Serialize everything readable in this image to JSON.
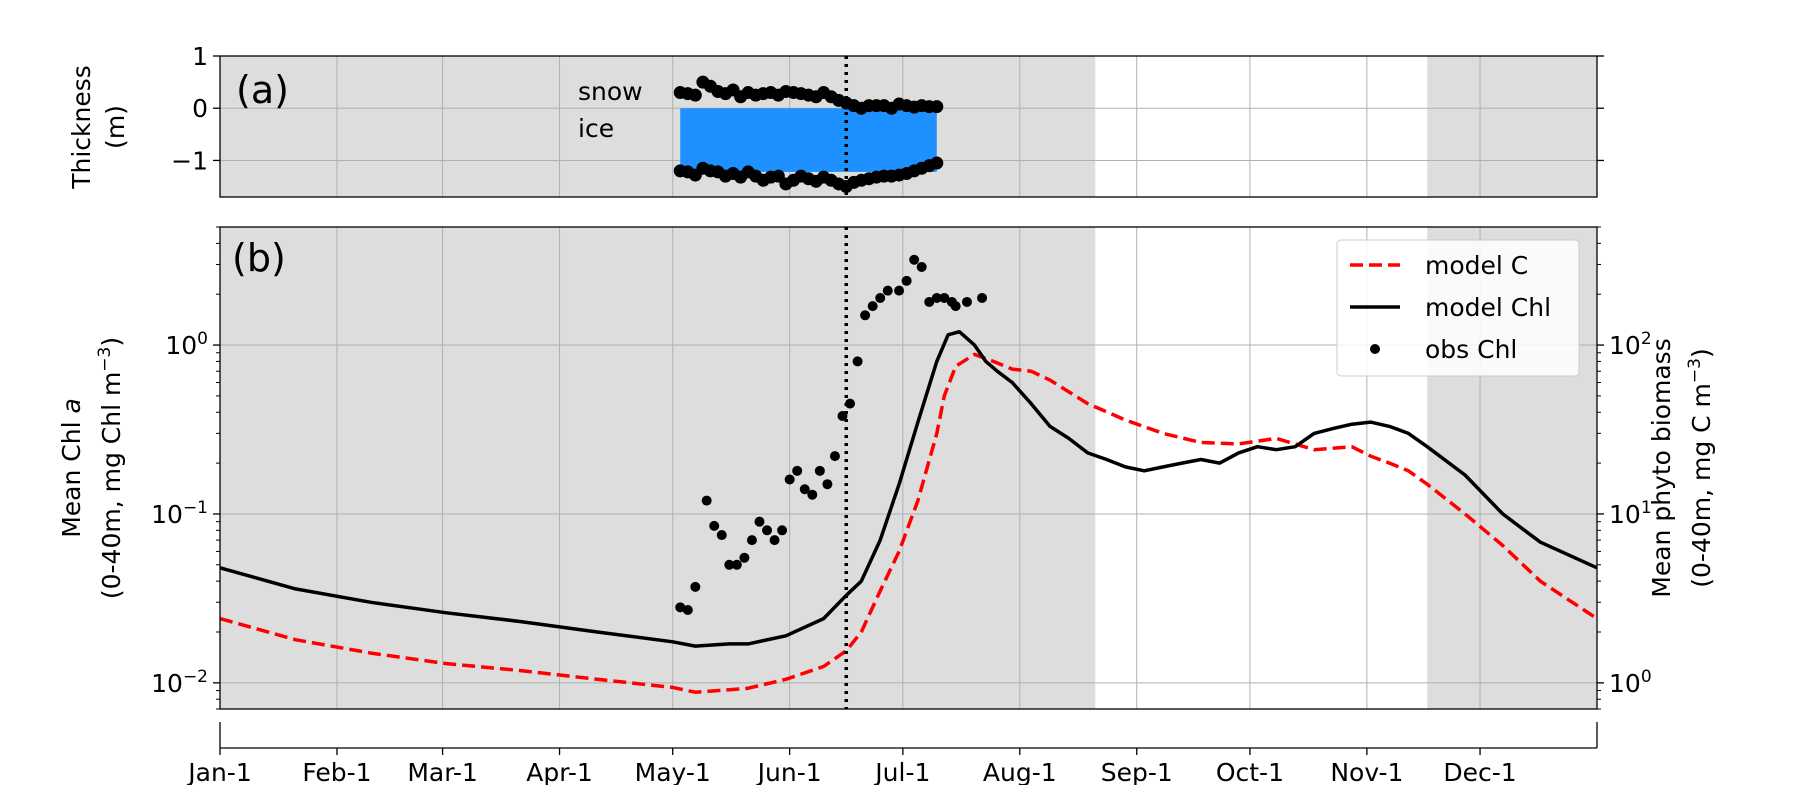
{
  "colors": {
    "shade": "#dddddd",
    "ice": "#1e90ff",
    "model_c": "#ff0000",
    "model_chl": "#000000",
    "obs": "#000000",
    "grid": "#b0b0b0"
  },
  "chart_data": [
    {
      "panel": "(a)",
      "type": "line",
      "ylabel": "Thickness",
      "ylabel_units": "(m)",
      "ylim": [
        -1.7,
        1
      ],
      "yticks": [
        1,
        0,
        -1
      ],
      "ytick_labels": [
        "1",
        "0",
        "−1"
      ],
      "grid": true,
      "annotations": [
        "snow",
        "ice"
      ],
      "shaded_day_ranges": [
        [
          0,
          232
        ],
        [
          320,
          365
        ]
      ],
      "vertical_dotted_line_day": 166,
      "ice_bar_days": [
        122,
        190
      ],
      "snow_top": {
        "x": [
          122,
          124,
          126,
          128,
          130,
          132,
          134,
          136,
          138,
          140,
          142,
          144,
          146,
          148,
          150,
          152,
          154,
          156,
          158,
          160,
          162,
          164,
          166,
          168,
          170,
          172,
          174,
          176,
          178,
          180,
          182,
          184,
          186,
          188,
          190
        ],
        "y": [
          0.3,
          0.28,
          0.25,
          0.5,
          0.42,
          0.32,
          0.28,
          0.35,
          0.22,
          0.3,
          0.25,
          0.28,
          0.3,
          0.25,
          0.32,
          0.3,
          0.28,
          0.25,
          0.22,
          0.3,
          0.22,
          0.15,
          0.1,
          0.05,
          0.0,
          0.05,
          0.05,
          0.05,
          0.0,
          0.08,
          0.05,
          0.02,
          0.05,
          0.03,
          0.03
        ]
      },
      "ice_bottom": {
        "x": [
          122,
          124,
          126,
          128,
          130,
          132,
          134,
          136,
          138,
          140,
          142,
          144,
          146,
          148,
          150,
          152,
          154,
          156,
          158,
          160,
          162,
          164,
          166,
          168,
          170,
          172,
          174,
          176,
          178,
          180,
          182,
          184,
          186,
          188,
          190
        ],
        "y": [
          -1.2,
          -1.22,
          -1.28,
          -1.15,
          -1.2,
          -1.22,
          -1.3,
          -1.25,
          -1.32,
          -1.22,
          -1.3,
          -1.38,
          -1.32,
          -1.3,
          -1.45,
          -1.38,
          -1.3,
          -1.35,
          -1.4,
          -1.32,
          -1.38,
          -1.45,
          -1.5,
          -1.42,
          -1.38,
          -1.35,
          -1.32,
          -1.3,
          -1.3,
          -1.28,
          -1.25,
          -1.2,
          -1.15,
          -1.1,
          -1.05
        ]
      }
    },
    {
      "panel": "(b)",
      "type": "line",
      "ylabel_line1_prefix": "Mean Chl ",
      "ylabel_line1_italic": "a",
      "ylabel_line2": "(0-40m, mg Chl m",
      "ylabel_line2_sup": "−3",
      "ylabel_line2_suffix": ")",
      "y2label_line1": "Mean phyto biomass",
      "y2label_line2": "(0-40m, mg C m",
      "y2label_line2_sup": "−3",
      "y2label_line2_suffix": ")",
      "yscale": "log",
      "ylim": [
        0.007,
        5
      ],
      "y2lim": [
        0.7,
        500
      ],
      "yticks": [
        {
          "value": 1,
          "base": "10",
          "exp": "0"
        },
        {
          "value": 0.1,
          "base": "10",
          "exp": "−1"
        },
        {
          "value": 0.01,
          "base": "10",
          "exp": "−2"
        }
      ],
      "y2ticks": [
        {
          "value": 100,
          "base": "10",
          "exp": "2"
        },
        {
          "value": 10,
          "base": "10",
          "exp": "1"
        },
        {
          "value": 1,
          "base": "10",
          "exp": "0"
        }
      ],
      "grid": true,
      "legend_position": "top-right",
      "shaded_day_ranges": [
        [
          0,
          232
        ],
        [
          320,
          365
        ]
      ],
      "vertical_dotted_line_day": 166,
      "xlim": [
        0,
        365
      ],
      "xticks": [
        0,
        31,
        59,
        90,
        120,
        151,
        181,
        212,
        243,
        273,
        304,
        334
      ],
      "xtick_labels": [
        "Jan-1",
        "Feb-1",
        "Mar-1",
        "Apr-1",
        "May-1",
        "Jun-1",
        "Jul-1",
        "Aug-1",
        "Sep-1",
        "Oct-1",
        "Nov-1",
        "Dec-1"
      ],
      "series": [
        {
          "name": "model C",
          "style": "dashed",
          "x": [
            0,
            20,
            40,
            60,
            80,
            100,
            120,
            126,
            135,
            140,
            150,
            160,
            166,
            170,
            175,
            180,
            185,
            190,
            192,
            195,
            200,
            205,
            210,
            215,
            220,
            230,
            240,
            250,
            260,
            270,
            280,
            290,
            300,
            305,
            310,
            315,
            320,
            330,
            340,
            350,
            365
          ],
          "y": [
            0.024,
            0.018,
            0.015,
            0.013,
            0.0118,
            0.0105,
            0.0094,
            0.0088,
            0.0091,
            0.0093,
            0.0105,
            0.0125,
            0.0155,
            0.02,
            0.035,
            0.06,
            0.12,
            0.3,
            0.5,
            0.75,
            0.88,
            0.8,
            0.72,
            0.7,
            0.62,
            0.45,
            0.36,
            0.3,
            0.265,
            0.26,
            0.28,
            0.24,
            0.25,
            0.22,
            0.2,
            0.18,
            0.15,
            0.1,
            0.065,
            0.04,
            0.024
          ]
        },
        {
          "name": "model Chl",
          "style": "solid",
          "x": [
            0,
            20,
            40,
            60,
            80,
            100,
            120,
            126,
            135,
            140,
            150,
            160,
            166,
            170,
            175,
            180,
            185,
            190,
            193,
            196,
            200,
            203,
            206,
            210,
            215,
            220,
            225,
            230,
            235,
            240,
            245,
            250,
            255,
            260,
            265,
            270,
            275,
            280,
            285,
            290,
            295,
            300,
            305,
            310,
            315,
            320,
            330,
            340,
            350,
            365
          ],
          "y": [
            0.048,
            0.036,
            0.03,
            0.026,
            0.023,
            0.02,
            0.0175,
            0.0165,
            0.017,
            0.017,
            0.019,
            0.024,
            0.033,
            0.04,
            0.07,
            0.15,
            0.35,
            0.8,
            1.15,
            1.2,
            1.0,
            0.8,
            0.7,
            0.6,
            0.45,
            0.33,
            0.28,
            0.23,
            0.21,
            0.19,
            0.18,
            0.19,
            0.2,
            0.21,
            0.2,
            0.23,
            0.25,
            0.24,
            0.25,
            0.3,
            0.32,
            0.34,
            0.35,
            0.33,
            0.3,
            0.25,
            0.17,
            0.1,
            0.068,
            0.048
          ]
        },
        {
          "name": "obs Chl",
          "style": "points",
          "x": [
            122,
            124,
            126,
            129,
            131,
            133,
            135,
            137,
            139,
            141,
            143,
            145,
            147,
            149,
            151,
            153,
            155,
            157,
            159,
            161,
            163,
            165,
            167,
            169,
            171,
            173,
            175,
            177,
            180,
            182,
            184,
            186,
            188,
            190,
            192,
            194,
            195,
            198,
            202
          ],
          "y": [
            0.028,
            0.027,
            0.037,
            0.12,
            0.085,
            0.075,
            0.05,
            0.05,
            0.055,
            0.07,
            0.09,
            0.08,
            0.07,
            0.08,
            0.16,
            0.18,
            0.14,
            0.13,
            0.18,
            0.15,
            0.22,
            0.38,
            0.45,
            0.8,
            1.5,
            1.7,
            1.9,
            2.1,
            2.1,
            2.4,
            3.2,
            2.9,
            1.8,
            1.9,
            1.9,
            1.8,
            1.7,
            1.8,
            1.9
          ]
        }
      ]
    }
  ]
}
